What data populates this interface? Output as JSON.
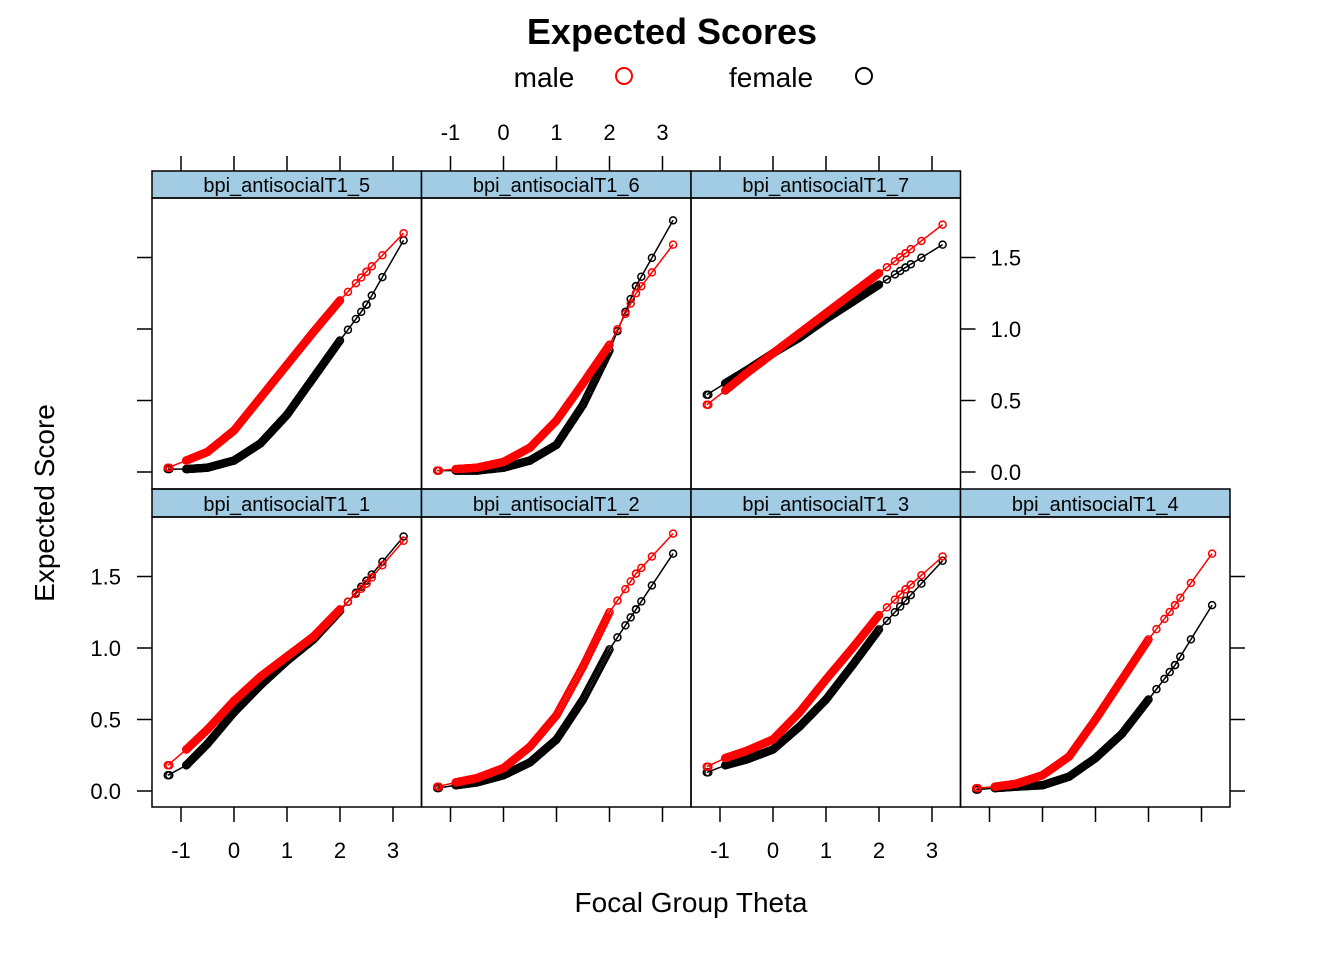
{
  "chart_data": {
    "type": "line",
    "title": "Expected Scores",
    "xlabel": "Focal Group Theta",
    "ylabel": "Expected Score",
    "xlim": [
      -1.55,
      3.53
    ],
    "ylim": [
      -0.11,
      1.92
    ],
    "x_ticks": [
      "-1",
      "0",
      "1",
      "2",
      "3"
    ],
    "x_tick_values": [
      -1,
      0,
      1,
      2,
      3
    ],
    "y_ticks": [
      "0.0",
      "0.5",
      "1.0",
      "1.5"
    ],
    "y_tick_values": [
      0,
      0.5,
      1.0,
      1.5
    ],
    "grid": false,
    "legend": {
      "placement": "top",
      "entries": [
        {
          "name": "male",
          "color": "#FF0000",
          "symbol": "open-circle"
        },
        {
          "name": "female",
          "color": "#000000",
          "symbol": "open-circle"
        }
      ]
    },
    "strip_color": "#A1CCE3",
    "theta": [
      -1.25,
      -0.9,
      -0.5,
      0,
      0.5,
      1,
      1.5,
      2,
      2.5,
      3.2
    ],
    "panels": [
      {
        "label": "bpi_antisocialT1_1",
        "row": "bottom",
        "col": 0,
        "series": [
          {
            "name": "male",
            "values": [
              0.18,
              0.29,
              0.43,
              0.63,
              0.8,
              0.94,
              1.08,
              1.27,
              1.45,
              1.75
            ]
          },
          {
            "name": "female",
            "values": [
              0.11,
              0.18,
              0.33,
              0.55,
              0.74,
              0.91,
              1.06,
              1.26,
              1.47,
              1.78
            ]
          }
        ]
      },
      {
        "label": "bpi_antisocialT1_2",
        "row": "bottom",
        "col": 1,
        "series": [
          {
            "name": "male",
            "values": [
              0.03,
              0.06,
              0.09,
              0.16,
              0.31,
              0.53,
              0.87,
              1.25,
              1.52,
              1.8
            ]
          },
          {
            "name": "female",
            "values": [
              0.02,
              0.04,
              0.06,
              0.11,
              0.2,
              0.36,
              0.64,
              0.99,
              1.27,
              1.66
            ]
          }
        ]
      },
      {
        "label": "bpi_antisocialT1_3",
        "row": "bottom",
        "col": 2,
        "series": [
          {
            "name": "male",
            "values": [
              0.17,
              0.23,
              0.28,
              0.36,
              0.55,
              0.78,
              1.0,
              1.23,
              1.41,
              1.64
            ]
          },
          {
            "name": "female",
            "values": [
              0.13,
              0.18,
              0.22,
              0.29,
              0.45,
              0.64,
              0.88,
              1.13,
              1.33,
              1.61
            ]
          }
        ]
      },
      {
        "label": "bpi_antisocialT1_4",
        "row": "bottom",
        "col": 3,
        "series": [
          {
            "name": "male",
            "values": [
              0.02,
              0.03,
              0.05,
              0.11,
              0.24,
              0.5,
              0.78,
              1.06,
              1.3,
              1.66
            ]
          },
          {
            "name": "female",
            "values": [
              0.01,
              0.02,
              0.03,
              0.04,
              0.1,
              0.23,
              0.4,
              0.64,
              0.88,
              1.3
            ]
          }
        ]
      },
      {
        "label": "bpi_antisocialT1_5",
        "row": "top",
        "col": 0,
        "series": [
          {
            "name": "male",
            "values": [
              0.03,
              0.08,
              0.14,
              0.29,
              0.52,
              0.75,
              0.98,
              1.2,
              1.4,
              1.67
            ]
          },
          {
            "name": "female",
            "values": [
              0.02,
              0.02,
              0.03,
              0.08,
              0.2,
              0.4,
              0.66,
              0.92,
              1.17,
              1.62
            ]
          }
        ]
      },
      {
        "label": "bpi_antisocialT1_6",
        "row": "top",
        "col": 1,
        "series": [
          {
            "name": "male",
            "values": [
              0.01,
              0.02,
              0.03,
              0.07,
              0.17,
              0.36,
              0.62,
              0.89,
              1.25,
              1.59
            ]
          },
          {
            "name": "female",
            "values": [
              0.01,
              0.01,
              0.01,
              0.03,
              0.08,
              0.19,
              0.47,
              0.85,
              1.3,
              1.76
            ]
          }
        ]
      },
      {
        "label": "bpi_antisocialT1_7",
        "row": "top",
        "col": 2,
        "series": [
          {
            "name": "male",
            "values": [
              0.47,
              0.57,
              0.69,
              0.83,
              0.97,
              1.11,
              1.25,
              1.39,
              1.53,
              1.73
            ]
          },
          {
            "name": "female",
            "values": [
              0.54,
              0.62,
              0.71,
              0.83,
              0.94,
              1.07,
              1.19,
              1.31,
              1.43,
              1.59
            ]
          }
        ]
      }
    ]
  }
}
